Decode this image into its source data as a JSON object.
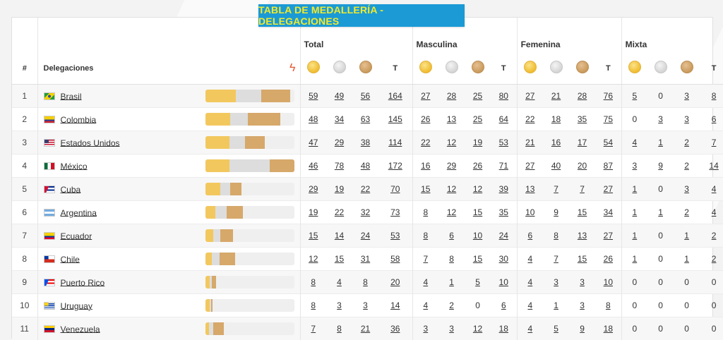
{
  "title": "TABLA DE MEDALLERÍA - DELEGACIONES",
  "header": {
    "rank": "#",
    "delegations": "Delegaciones",
    "logo_glyph": "ϟ",
    "groups": [
      "Total",
      "Masculina",
      "Femenina",
      "Mixta"
    ],
    "total_col": "T"
  },
  "colors": {
    "gold": "#f2c85e",
    "silver": "#dddddd",
    "bronze": "#d6a86a",
    "title_bg": "#1b9ad6",
    "title_fg": "#f2ea2a"
  },
  "rows": [
    {
      "rank": "1",
      "name": "Brasil",
      "flag": "br",
      "total": [
        "59",
        "49",
        "56",
        "164"
      ],
      "m": [
        "27",
        "28",
        "25",
        "80"
      ],
      "f": [
        "27",
        "21",
        "28",
        "76"
      ],
      "x": [
        "5",
        "0",
        "3",
        "8"
      ]
    },
    {
      "rank": "2",
      "name": "Colombia",
      "flag": "co",
      "total": [
        "48",
        "34",
        "63",
        "145"
      ],
      "m": [
        "26",
        "13",
        "25",
        "64"
      ],
      "f": [
        "22",
        "18",
        "35",
        "75"
      ],
      "x": [
        "0",
        "3",
        "3",
        "6"
      ]
    },
    {
      "rank": "3",
      "name": "Estados Unidos",
      "flag": "us",
      "total": [
        "47",
        "29",
        "38",
        "114"
      ],
      "m": [
        "22",
        "12",
        "19",
        "53"
      ],
      "f": [
        "21",
        "16",
        "17",
        "54"
      ],
      "x": [
        "4",
        "1",
        "2",
        "7"
      ]
    },
    {
      "rank": "4",
      "name": "México",
      "flag": "mx",
      "total": [
        "46",
        "78",
        "48",
        "172"
      ],
      "m": [
        "16",
        "29",
        "26",
        "71"
      ],
      "f": [
        "27",
        "40",
        "20",
        "87"
      ],
      "x": [
        "3",
        "9",
        "2",
        "14"
      ]
    },
    {
      "rank": "5",
      "name": "Cuba",
      "flag": "cu",
      "total": [
        "29",
        "19",
        "22",
        "70"
      ],
      "m": [
        "15",
        "12",
        "12",
        "39"
      ],
      "f": [
        "13",
        "7",
        "7",
        "27"
      ],
      "x": [
        "1",
        "0",
        "3",
        "4"
      ]
    },
    {
      "rank": "6",
      "name": "Argentina",
      "flag": "ar",
      "total": [
        "19",
        "22",
        "32",
        "73"
      ],
      "m": [
        "8",
        "12",
        "15",
        "35"
      ],
      "f": [
        "10",
        "9",
        "15",
        "34"
      ],
      "x": [
        "1",
        "1",
        "2",
        "4"
      ]
    },
    {
      "rank": "7",
      "name": "Ecuador",
      "flag": "ec",
      "total": [
        "15",
        "14",
        "24",
        "53"
      ],
      "m": [
        "8",
        "6",
        "10",
        "24"
      ],
      "f": [
        "6",
        "8",
        "13",
        "27"
      ],
      "x": [
        "1",
        "0",
        "1",
        "2"
      ]
    },
    {
      "rank": "8",
      "name": "Chile",
      "flag": "cl",
      "total": [
        "12",
        "15",
        "31",
        "58"
      ],
      "m": [
        "7",
        "8",
        "15",
        "30"
      ],
      "f": [
        "4",
        "7",
        "15",
        "26"
      ],
      "x": [
        "1",
        "0",
        "1",
        "2"
      ]
    },
    {
      "rank": "9",
      "name": "Puerto Rico",
      "flag": "pr",
      "total": [
        "8",
        "4",
        "8",
        "20"
      ],
      "m": [
        "4",
        "1",
        "5",
        "10"
      ],
      "f": [
        "4",
        "3",
        "3",
        "10"
      ],
      "x": [
        "0",
        "0",
        "0",
        "0"
      ]
    },
    {
      "rank": "10",
      "name": "Uruguay",
      "flag": "uy",
      "total": [
        "8",
        "3",
        "3",
        "14"
      ],
      "m": [
        "4",
        "2",
        "0",
        "6"
      ],
      "f": [
        "4",
        "1",
        "3",
        "8"
      ],
      "x": [
        "0",
        "0",
        "0",
        "0"
      ]
    },
    {
      "rank": "11",
      "name": "Venezuela",
      "flag": "ve",
      "total": [
        "7",
        "8",
        "21",
        "36"
      ],
      "m": [
        "3",
        "3",
        "12",
        "18"
      ],
      "f": [
        "4",
        "5",
        "9",
        "18"
      ],
      "x": [
        "0",
        "0",
        "0",
        "0"
      ]
    }
  ]
}
